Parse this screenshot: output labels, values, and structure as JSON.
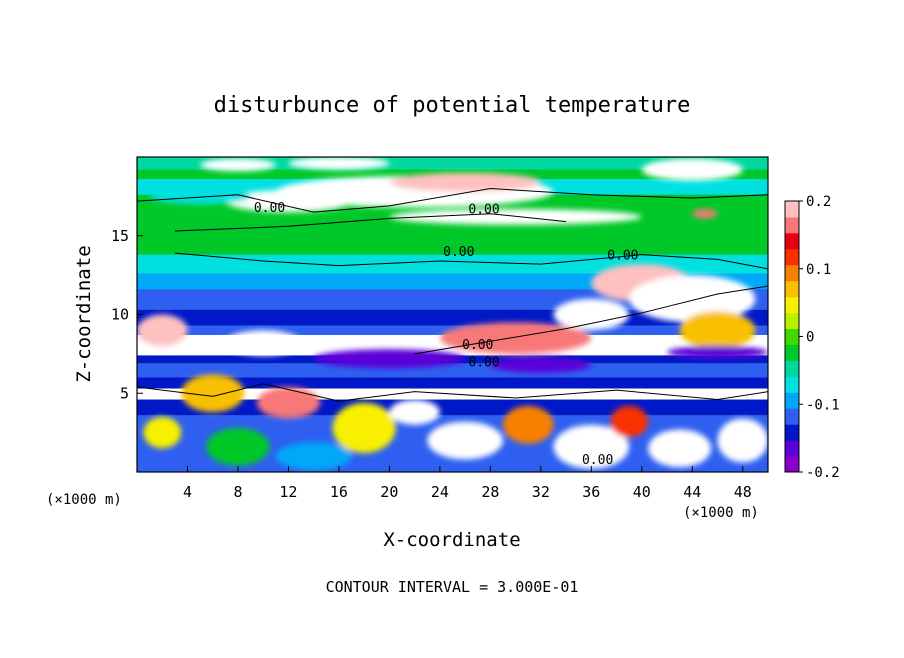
{
  "chart_data": {
    "type": "heatmap",
    "title": "disturbunce of potential temperature",
    "xlabel": "X-coordinate",
    "ylabel": "Z-coordinate",
    "x_unit": "(×1000 m)",
    "y_unit": "(×1000 m)",
    "xlim": [
      0,
      50
    ],
    "ylim": [
      0,
      20
    ],
    "x_ticks": [
      "4",
      "8",
      "12",
      "16",
      "20",
      "24",
      "28",
      "32",
      "36",
      "40",
      "44",
      "48"
    ],
    "y_ticks": [
      "5",
      "10",
      "15"
    ],
    "colorbar": {
      "range": [
        -0.2,
        0.2
      ],
      "tick_labels": [
        "0.2",
        "0.1",
        "0",
        "-0.1",
        "-0.2"
      ],
      "colors": [
        "#8b00c8",
        "#5a00d8",
        "#0018c8",
        "#2e5ff0",
        "#00a8f8",
        "#00e0e0",
        "#00d8a0",
        "#00c828",
        "#40d800",
        "#b8f000",
        "#f8f000",
        "#f8c000",
        "#f88000",
        "#f83000",
        "#e80010",
        "#f87878",
        "#ffc0c0"
      ]
    },
    "contour_labels": [
      "0.00",
      "0.00",
      "0.00",
      "0.00",
      "0.00",
      "0.00",
      "0.00"
    ],
    "footer": "CONTOUR INTERVAL = 3.000E-01"
  }
}
